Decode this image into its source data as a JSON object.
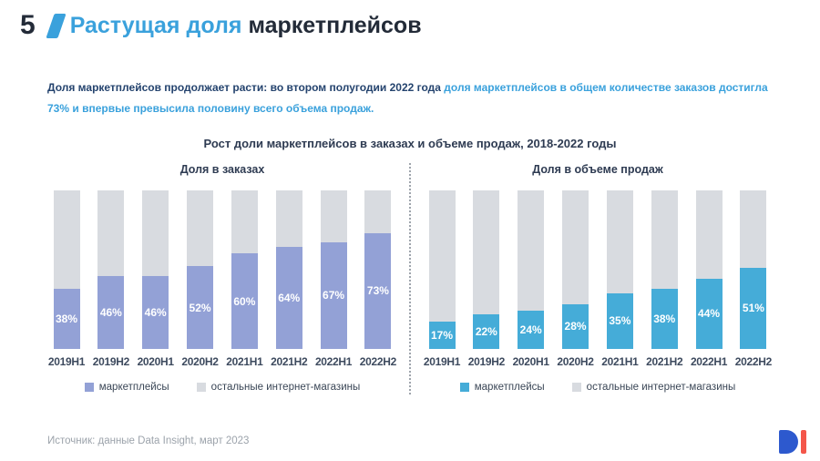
{
  "slide": {
    "number": "5",
    "title_accent": "Растущая доля",
    "title_rest": "маркетплейсов"
  },
  "intro": {
    "lead": "Доля маркетплейсов продолжает расти: во втором полугодии 2022 года",
    "highlight": "доля маркетплейсов в общем количестве заказов достигла 73% и впервые превысила половину всего объема продаж."
  },
  "chart_section": {
    "title": "Рост доли маркетплейсов в заказах и объеме продаж, 2018-2022 годы"
  },
  "chart_data": [
    {
      "type": "bar",
      "stacked": true,
      "title": "Доля в заказах",
      "unit": "%",
      "ylim": [
        0,
        100
      ],
      "grid": false,
      "legend_position": "bottom",
      "categories": [
        "2019H1",
        "2019H2",
        "2020H1",
        "2020H2",
        "2021H1",
        "2021H2",
        "2022H1",
        "2022H2"
      ],
      "series": [
        {
          "name": "маркетплейсы",
          "color": "#93a1d6",
          "values": [
            38,
            46,
            46,
            52,
            60,
            64,
            67,
            73
          ],
          "data_labels": true
        },
        {
          "name": "остальные интернет-магазины",
          "color": "#d8dbe0",
          "values": [
            62,
            54,
            54,
            48,
            40,
            36,
            33,
            27
          ],
          "data_labels": false
        }
      ]
    },
    {
      "type": "bar",
      "stacked": true,
      "title": "Доля в объеме продаж",
      "unit": "%",
      "ylim": [
        0,
        100
      ],
      "grid": false,
      "legend_position": "bottom",
      "categories": [
        "2019H1",
        "2019H2",
        "2020H1",
        "2020H2",
        "2021H1",
        "2021H2",
        "2022H1",
        "2022H2"
      ],
      "series": [
        {
          "name": "маркетплейсы",
          "color": "#45acd8",
          "values": [
            17,
            22,
            24,
            28,
            35,
            38,
            44,
            51
          ],
          "data_labels": true
        },
        {
          "name": "остальные интернет-магазины",
          "color": "#d8dbe0",
          "values": [
            83,
            78,
            76,
            72,
            65,
            62,
            56,
            49
          ],
          "data_labels": false
        }
      ]
    }
  ],
  "footer": {
    "source": "Источник: данные Data Insight, март 2023"
  },
  "logo": {
    "name": "Data Insight",
    "d_color": "#2d59ce",
    "i_color": "#f4564a"
  },
  "colors": {
    "accent_blue": "#3aa1dc",
    "dark_navy": "#24436e",
    "text_dark": "#232b38"
  }
}
